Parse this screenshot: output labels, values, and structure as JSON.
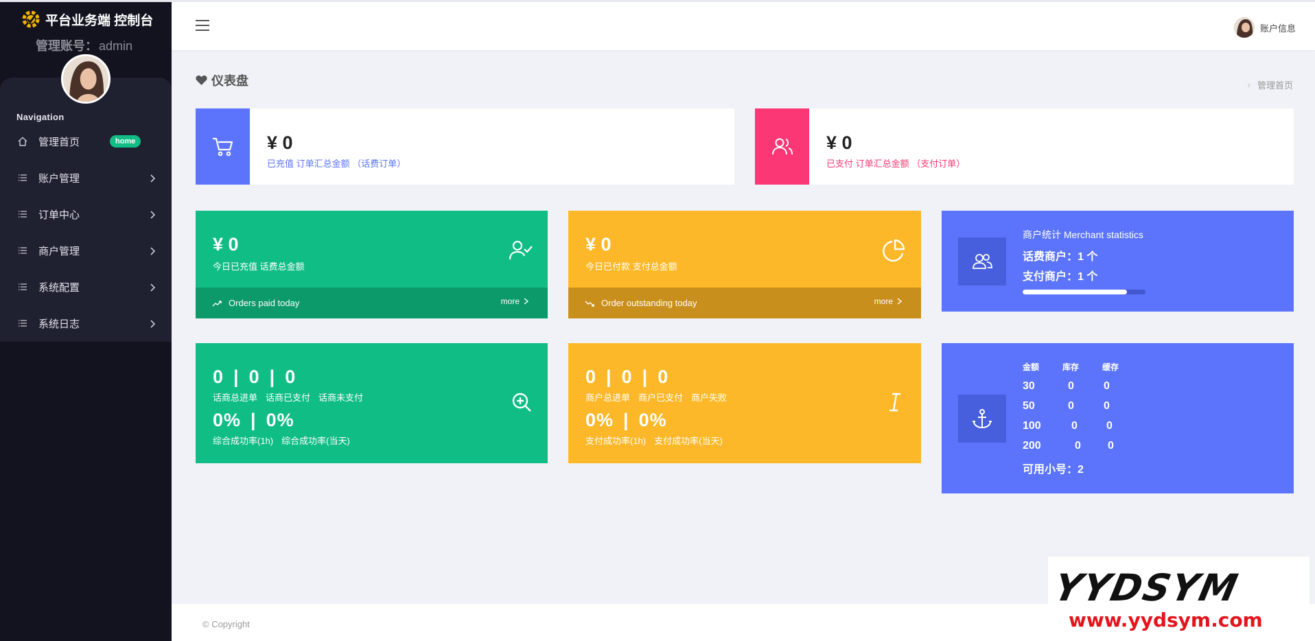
{
  "brand": {
    "title": "平台业务端 控制台",
    "account_label": "管理账号：",
    "account_value": "admin"
  },
  "sidebar": {
    "nav_title": "Navigation",
    "items": [
      {
        "label": "管理首页",
        "badge": "home",
        "icon": "home-icon"
      },
      {
        "label": "账户管理",
        "icon": "list-icon"
      },
      {
        "label": "订单中心",
        "icon": "list-icon"
      },
      {
        "label": "商户管理",
        "icon": "list-icon"
      },
      {
        "label": "系统配置",
        "icon": "list-icon"
      },
      {
        "label": "系统日志",
        "icon": "list-icon"
      }
    ]
  },
  "header": {
    "user_label": "账户信息"
  },
  "page": {
    "title": "仪表盘",
    "breadcrumb": "管理首页"
  },
  "stats": {
    "recharge": {
      "amount": "¥ 0",
      "desc": "已充值 订单汇总金额 （话费订单）",
      "icon": "cart-icon",
      "color": "#5b74fb"
    },
    "paid": {
      "amount": "¥ 0",
      "desc": "已支付 订单汇总金额 （支付订单）",
      "icon": "users-icon",
      "color": "#fc3775"
    }
  },
  "tiles": {
    "today_recharge": {
      "amount": "¥ 0",
      "desc": "今日已充值 话费总金额",
      "footer": "Orders paid today",
      "more": "more",
      "icon": "user-check-icon",
      "color": "#10bd84"
    },
    "today_paid": {
      "amount": "¥ 0",
      "desc": "今日已付款 支付总金额",
      "footer": "Order outstanding today",
      "more": "more",
      "icon": "pie-chart-icon",
      "color": "#fdb829"
    }
  },
  "merchant": {
    "title": "商户统计 Merchant statistics",
    "line1": "话费商户：1 个",
    "line2": "支付商户：1 个",
    "progress": 0.85,
    "icon": "users-icon"
  },
  "phone_orders": {
    "values": [
      "0",
      "0",
      "0"
    ],
    "labels": [
      "话商总进单",
      "话商已支付",
      "话商未支付"
    ],
    "rates": [
      "0%",
      "0%"
    ],
    "rate_labels": [
      "综合成功率(1h)",
      "综合成功率(当天)"
    ],
    "icon": "zoom-in-icon"
  },
  "merchant_orders": {
    "values": [
      "0",
      "0",
      "0"
    ],
    "labels": [
      "商户总进单",
      "商户已支付",
      "商户失败"
    ],
    "rates": [
      "0%",
      "0%"
    ],
    "rate_labels": [
      "支付成功率(1h)",
      "支付成功率(当天)"
    ],
    "icon": "italic-icon"
  },
  "stock": {
    "headers": [
      "金额",
      "库存",
      "缓存"
    ],
    "rows": [
      [
        "30",
        "0",
        "0"
      ],
      [
        "50",
        "0",
        "0"
      ],
      [
        "100",
        "0",
        "0"
      ],
      [
        "200",
        "0",
        "0"
      ]
    ],
    "available": "可用小号：2",
    "icon": "anchor-icon"
  },
  "footer": {
    "copyright": "© Copyright"
  },
  "watermark": {
    "line1": "YYDSYM",
    "line2": "www.yydsym.com"
  }
}
